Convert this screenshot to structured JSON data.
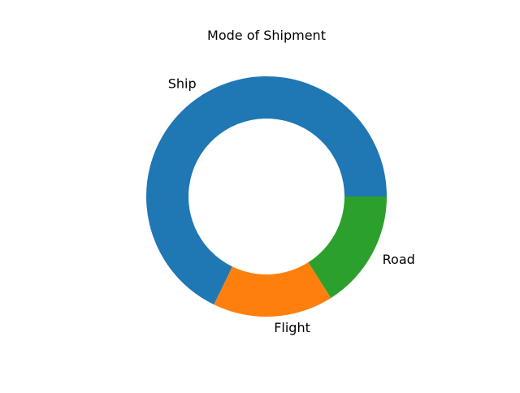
{
  "chart_data": {
    "type": "pie",
    "variant": "donut",
    "title": "Mode of Shipment",
    "categories": [
      "Ship",
      "Flight",
      "Road"
    ],
    "values": [
      67.8,
      16.2,
      16.0
    ],
    "unit": "%",
    "colors": [
      "#1f77b4",
      "#ff7f0e",
      "#2ca02c"
    ],
    "start_angle_deg": 0,
    "direction": "counterclockwise",
    "legend": "none"
  }
}
